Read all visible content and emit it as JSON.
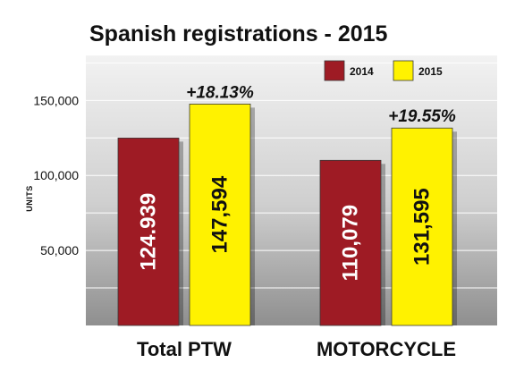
{
  "chart_data": {
    "type": "bar",
    "title": "Spanish registrations - 2015",
    "ylabel": "UNITS",
    "ylim": [
      0,
      180000
    ],
    "yticks": [
      {
        "value": 50000,
        "label": "50,000"
      },
      {
        "value": 100000,
        "label": "100,000"
      },
      {
        "value": 150000,
        "label": "150,000"
      }
    ],
    "categories": [
      "Total PTW",
      "MOTORCYCLE"
    ],
    "series": [
      {
        "name": "2014",
        "color": "#9e1b24",
        "values": [
          124939,
          110079
        ],
        "labels": [
          "124.939",
          "110,079"
        ]
      },
      {
        "name": "2015",
        "color": "#fff200",
        "values": [
          147594,
          131595
        ],
        "labels": [
          "147,594",
          "131,595"
        ]
      }
    ],
    "changes": [
      "+18.13%",
      "+19.55%"
    ],
    "grid": true,
    "legend": "top-right"
  }
}
